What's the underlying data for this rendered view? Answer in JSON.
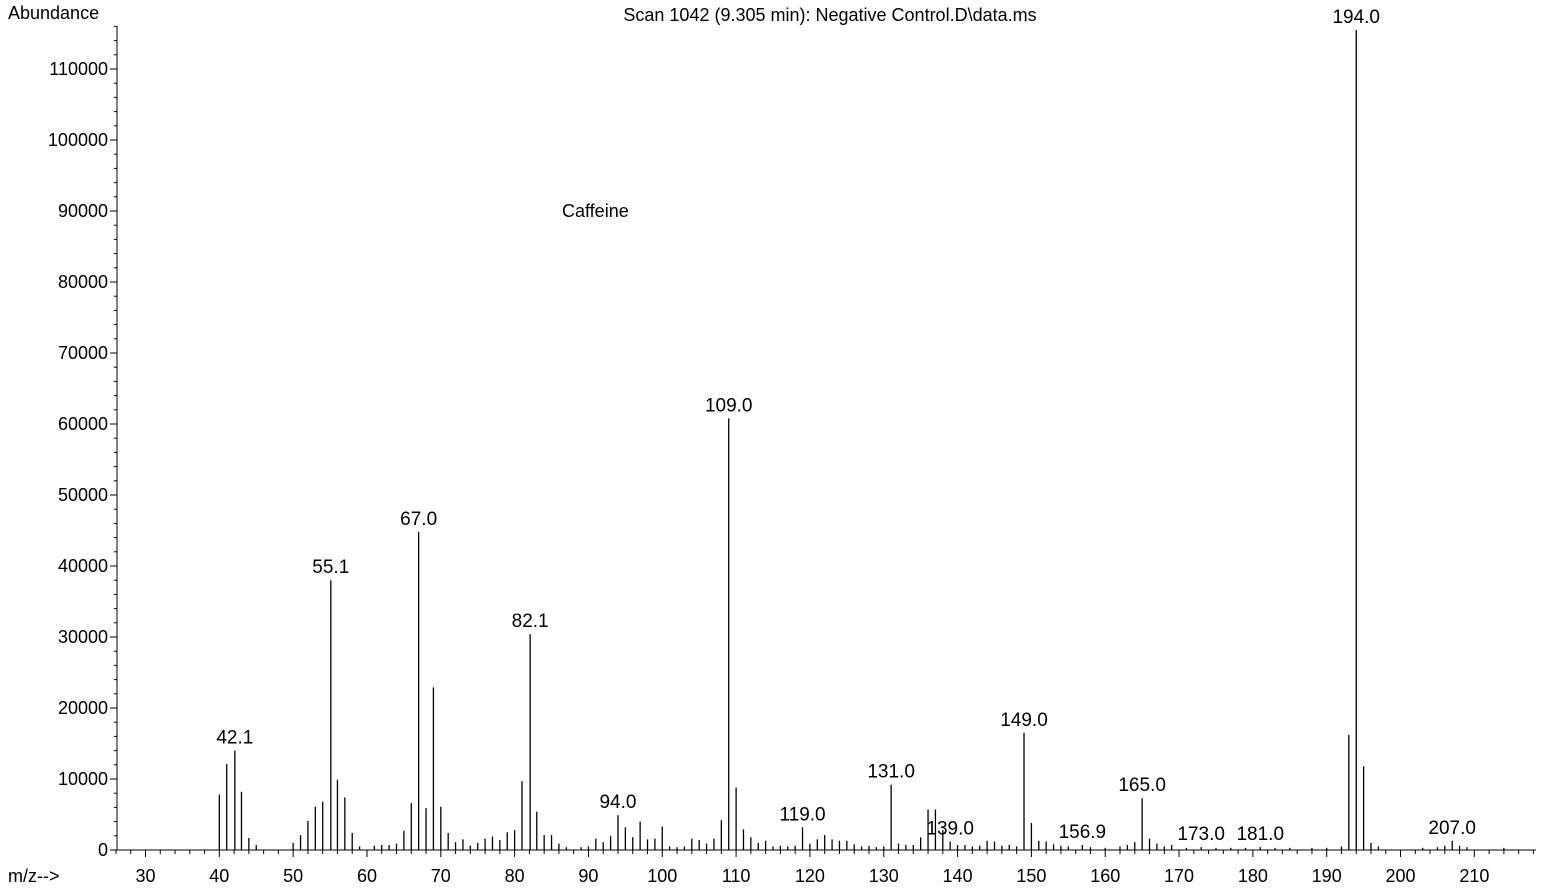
{
  "chart_data": {
    "type": "bar",
    "title": "Scan 1042 (9.305 min): Negative Control.D\\data.ms",
    "ylabel": "Abundance",
    "xlabel": "m/z-->",
    "annotation": "Caffeine",
    "xlim": [
      26,
      218
    ],
    "ylim": [
      0,
      116000
    ],
    "x_ticks": [
      30,
      40,
      50,
      60,
      70,
      80,
      90,
      100,
      110,
      120,
      130,
      140,
      150,
      160,
      170,
      180,
      190,
      200,
      210
    ],
    "y_ticks": [
      0,
      10000,
      20000,
      30000,
      40000,
      50000,
      60000,
      70000,
      80000,
      90000,
      100000,
      110000
    ],
    "grid": false,
    "peaks": [
      {
        "mz": 40,
        "abundance": 7800
      },
      {
        "mz": 41,
        "abundance": 12100
      },
      {
        "mz": 42.1,
        "abundance": 14000,
        "label": "42.1"
      },
      {
        "mz": 43,
        "abundance": 8200
      },
      {
        "mz": 44,
        "abundance": 1700
      },
      {
        "mz": 45,
        "abundance": 700
      },
      {
        "mz": 50,
        "abundance": 1000
      },
      {
        "mz": 51,
        "abundance": 2100
      },
      {
        "mz": 52,
        "abundance": 4100
      },
      {
        "mz": 53,
        "abundance": 6100
      },
      {
        "mz": 54,
        "abundance": 6800
      },
      {
        "mz": 55.1,
        "abundance": 38000,
        "label": "55.1"
      },
      {
        "mz": 56,
        "abundance": 9900
      },
      {
        "mz": 57,
        "abundance": 7400
      },
      {
        "mz": 58,
        "abundance": 2400
      },
      {
        "mz": 59,
        "abundance": 500
      },
      {
        "mz": 61,
        "abundance": 600
      },
      {
        "mz": 62,
        "abundance": 700
      },
      {
        "mz": 63,
        "abundance": 700
      },
      {
        "mz": 64,
        "abundance": 900
      },
      {
        "mz": 65,
        "abundance": 2700
      },
      {
        "mz": 66,
        "abundance": 6600
      },
      {
        "mz": 67,
        "abundance": 44800,
        "label": "67.0"
      },
      {
        "mz": 68,
        "abundance": 5900
      },
      {
        "mz": 69,
        "abundance": 22900
      },
      {
        "mz": 70,
        "abundance": 6100
      },
      {
        "mz": 71,
        "abundance": 2400
      },
      {
        "mz": 72,
        "abundance": 1100
      },
      {
        "mz": 73,
        "abundance": 1500
      },
      {
        "mz": 74,
        "abundance": 600
      },
      {
        "mz": 75,
        "abundance": 1000
      },
      {
        "mz": 76,
        "abundance": 1600
      },
      {
        "mz": 77,
        "abundance": 1900
      },
      {
        "mz": 78,
        "abundance": 1400
      },
      {
        "mz": 79,
        "abundance": 2500
      },
      {
        "mz": 80,
        "abundance": 2800
      },
      {
        "mz": 81,
        "abundance": 9700
      },
      {
        "mz": 82.1,
        "abundance": 30400,
        "label": "82.1"
      },
      {
        "mz": 83,
        "abundance": 5400
      },
      {
        "mz": 84,
        "abundance": 2100
      },
      {
        "mz": 85,
        "abundance": 2100
      },
      {
        "mz": 86,
        "abundance": 900
      },
      {
        "mz": 87,
        "abundance": 400
      },
      {
        "mz": 89,
        "abundance": 400
      },
      {
        "mz": 90,
        "abundance": 500
      },
      {
        "mz": 91,
        "abundance": 1600
      },
      {
        "mz": 92,
        "abundance": 1100
      },
      {
        "mz": 93,
        "abundance": 2000
      },
      {
        "mz": 94,
        "abundance": 4900,
        "label": "94.0"
      },
      {
        "mz": 95,
        "abundance": 3200
      },
      {
        "mz": 96,
        "abundance": 1800
      },
      {
        "mz": 97,
        "abundance": 4000
      },
      {
        "mz": 98,
        "abundance": 1500
      },
      {
        "mz": 99,
        "abundance": 1600
      },
      {
        "mz": 100,
        "abundance": 3300
      },
      {
        "mz": 101,
        "abundance": 500
      },
      {
        "mz": 102,
        "abundance": 400
      },
      {
        "mz": 103,
        "abundance": 500
      },
      {
        "mz": 104,
        "abundance": 1600
      },
      {
        "mz": 105,
        "abundance": 1400
      },
      {
        "mz": 106,
        "abundance": 900
      },
      {
        "mz": 107,
        "abundance": 1600
      },
      {
        "mz": 108,
        "abundance": 4200
      },
      {
        "mz": 109,
        "abundance": 60800,
        "label": "109.0"
      },
      {
        "mz": 110,
        "abundance": 8800
      },
      {
        "mz": 111,
        "abundance": 2900
      },
      {
        "mz": 112,
        "abundance": 1800
      },
      {
        "mz": 113,
        "abundance": 1000
      },
      {
        "mz": 114,
        "abundance": 1300
      },
      {
        "mz": 115,
        "abundance": 500
      },
      {
        "mz": 116,
        "abundance": 600
      },
      {
        "mz": 117,
        "abundance": 500
      },
      {
        "mz": 118,
        "abundance": 600
      },
      {
        "mz": 119,
        "abundance": 3200,
        "label": "119.0"
      },
      {
        "mz": 120,
        "abundance": 900
      },
      {
        "mz": 121,
        "abundance": 1500
      },
      {
        "mz": 122,
        "abundance": 2100
      },
      {
        "mz": 123,
        "abundance": 1500
      },
      {
        "mz": 124,
        "abundance": 1300
      },
      {
        "mz": 125,
        "abundance": 1300
      },
      {
        "mz": 126,
        "abundance": 800
      },
      {
        "mz": 127,
        "abundance": 500
      },
      {
        "mz": 128,
        "abundance": 600
      },
      {
        "mz": 129,
        "abundance": 400
      },
      {
        "mz": 130,
        "abundance": 500
      },
      {
        "mz": 131,
        "abundance": 9200,
        "label": "131.0"
      },
      {
        "mz": 132,
        "abundance": 900
      },
      {
        "mz": 133,
        "abundance": 700
      },
      {
        "mz": 134,
        "abundance": 700
      },
      {
        "mz": 135,
        "abundance": 1800
      },
      {
        "mz": 136,
        "abundance": 5700
      },
      {
        "mz": 137,
        "abundance": 5700
      },
      {
        "mz": 138,
        "abundance": 2800
      },
      {
        "mz": 139,
        "abundance": 1200,
        "label": "139.0"
      },
      {
        "mz": 140,
        "abundance": 700
      },
      {
        "mz": 141,
        "abundance": 700
      },
      {
        "mz": 142,
        "abundance": 500
      },
      {
        "mz": 143,
        "abundance": 600
      },
      {
        "mz": 144,
        "abundance": 1300
      },
      {
        "mz": 145,
        "abundance": 1200
      },
      {
        "mz": 146,
        "abundance": 600
      },
      {
        "mz": 147,
        "abundance": 700
      },
      {
        "mz": 148,
        "abundance": 500
      },
      {
        "mz": 149,
        "abundance": 16500,
        "label": "149.0"
      },
      {
        "mz": 150,
        "abundance": 3800
      },
      {
        "mz": 151,
        "abundance": 1300
      },
      {
        "mz": 152,
        "abundance": 1200
      },
      {
        "mz": 153,
        "abundance": 800
      },
      {
        "mz": 154,
        "abundance": 600
      },
      {
        "mz": 155,
        "abundance": 500
      },
      {
        "mz": 156.9,
        "abundance": 700,
        "label": "156.9"
      },
      {
        "mz": 158,
        "abundance": 400
      },
      {
        "mz": 160,
        "abundance": 300
      },
      {
        "mz": 162,
        "abundance": 500
      },
      {
        "mz": 163,
        "abundance": 700
      },
      {
        "mz": 164,
        "abundance": 1100
      },
      {
        "mz": 165,
        "abundance": 7300,
        "label": "165.0"
      },
      {
        "mz": 166,
        "abundance": 1600
      },
      {
        "mz": 167,
        "abundance": 900
      },
      {
        "mz": 168,
        "abundance": 500
      },
      {
        "mz": 169,
        "abundance": 700
      },
      {
        "mz": 171,
        "abundance": 300
      },
      {
        "mz": 173,
        "abundance": 400,
        "label": "173.0"
      },
      {
        "mz": 175,
        "abundance": 300
      },
      {
        "mz": 177,
        "abundance": 300
      },
      {
        "mz": 179,
        "abundance": 300
      },
      {
        "mz": 181,
        "abundance": 400,
        "label": "181.0"
      },
      {
        "mz": 183,
        "abundance": 300
      },
      {
        "mz": 185,
        "abundance": 300
      },
      {
        "mz": 188,
        "abundance": 300
      },
      {
        "mz": 190,
        "abundance": 300
      },
      {
        "mz": 192,
        "abundance": 500
      },
      {
        "mz": 193,
        "abundance": 16200
      },
      {
        "mz": 194,
        "abundance": 115500,
        "label": "194.0"
      },
      {
        "mz": 195,
        "abundance": 11800
      },
      {
        "mz": 196,
        "abundance": 1000
      },
      {
        "mz": 197,
        "abundance": 500
      },
      {
        "mz": 203,
        "abundance": 300
      },
      {
        "mz": 205,
        "abundance": 400
      },
      {
        "mz": 206,
        "abundance": 600
      },
      {
        "mz": 207,
        "abundance": 1300,
        "label": "207.0"
      },
      {
        "mz": 208,
        "abundance": 600
      },
      {
        "mz": 209,
        "abundance": 400
      },
      {
        "mz": 214,
        "abundance": 300
      }
    ]
  }
}
